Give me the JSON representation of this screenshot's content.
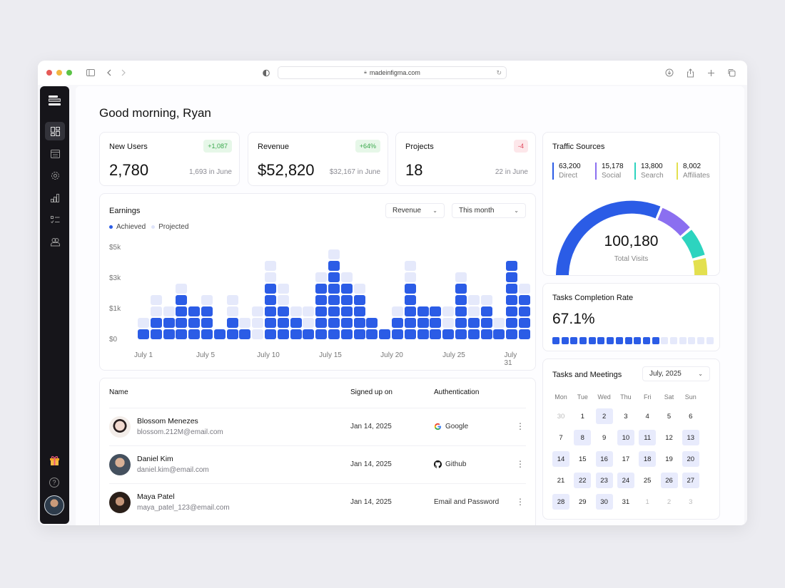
{
  "browser": {
    "url": "madeinfigma.com",
    "traffic_lights": [
      "#e65a57",
      "#f2b741",
      "#5bc346"
    ]
  },
  "sidebar": {
    "items": [
      {
        "name": "dashboard",
        "icon": "dashboard-icon",
        "active": true
      },
      {
        "name": "calendar",
        "icon": "calendar-icon",
        "active": false
      },
      {
        "name": "settings",
        "icon": "gear-icon",
        "active": false
      },
      {
        "name": "analytics",
        "icon": "bar-chart-icon",
        "active": false
      },
      {
        "name": "tasks",
        "icon": "checklist-icon",
        "active": false
      },
      {
        "name": "users",
        "icon": "users-icon",
        "active": false
      }
    ],
    "bottom": [
      "gift-icon",
      "help-icon",
      "avatar"
    ]
  },
  "greeting": "Good morning, Ryan",
  "stats": [
    {
      "title": "New Users",
      "badge": "+1,087",
      "badge_type": "pos",
      "value": "2,780",
      "sub": "1,693 in June"
    },
    {
      "title": "Revenue",
      "badge": "+64%",
      "badge_type": "pos",
      "value": "$52,820",
      "sub": "$32,167 in June"
    },
    {
      "title": "Projects",
      "badge": "-4",
      "badge_type": "neg",
      "value": "18",
      "sub": "22 in June"
    }
  ],
  "earnings": {
    "title": "Earnings",
    "metric_dropdown": "Revenue",
    "period_dropdown": "This month",
    "legend": [
      {
        "label": "Achieved",
        "color": "#2b5ce6"
      },
      {
        "label": "Projected",
        "color": "#e5e9fb"
      }
    ]
  },
  "chart_data": {
    "type": "bar",
    "title": "Earnings",
    "subtitle": "Revenue · This month",
    "xlabel": "",
    "ylabel": "",
    "y_ticks": [
      "$0",
      "$1k",
      "$3k",
      "$5k"
    ],
    "x_ticks": [
      "July 1",
      "July 5",
      "July 10",
      "July 15",
      "July 20",
      "July 25",
      "July 31"
    ],
    "categories": [
      "July 1",
      "July 2",
      "July 3",
      "July 4",
      "July 5",
      "July 6",
      "July 7",
      "July 8",
      "July 9",
      "July 10",
      "July 11",
      "July 12",
      "July 13",
      "July 14",
      "July 15",
      "July 16",
      "July 17",
      "July 18",
      "July 19",
      "July 20",
      "July 21",
      "July 22",
      "July 23",
      "July 24",
      "July 25",
      "July 26",
      "July 27",
      "July 28",
      "July 29",
      "July 30",
      "July 31"
    ],
    "series": [
      {
        "name": "Achieved",
        "unit": "blocks",
        "values": [
          1,
          2,
          2,
          4,
          3,
          3,
          1,
          2,
          1,
          0,
          5,
          3,
          2,
          1,
          5,
          7,
          5,
          4,
          2,
          1,
          2,
          5,
          3,
          3,
          1,
          5,
          2,
          3,
          1,
          7,
          4
        ]
      },
      {
        "name": "Projected",
        "unit": "blocks",
        "values": [
          2,
          4,
          3,
          5,
          3,
          4,
          1,
          4,
          2,
          3,
          7,
          5,
          3,
          3,
          6,
          8,
          6,
          5,
          2,
          1,
          3,
          7,
          3,
          3,
          3,
          6,
          4,
          4,
          2,
          7,
          5
        ]
      }
    ],
    "grid": false,
    "legend_position": "top-left"
  },
  "table": {
    "headers": [
      "Name",
      "Signed up on",
      "Authentication"
    ],
    "rows": [
      {
        "name": "Blossom Menezes",
        "email": "blossom.212M@email.com",
        "date": "Jan 14, 2025",
        "auth": "Google",
        "auth_icon": "google-icon",
        "avatar_color": "#d8c6bd"
      },
      {
        "name": "Daniel Kim",
        "email": "daniel.kim@email.com",
        "date": "Jan 14, 2025",
        "auth": "Github",
        "auth_icon": "github-icon",
        "avatar_color": "#5d6b7a"
      },
      {
        "name": "Maya Patel",
        "email": "maya_patel_123@email.com",
        "date": "Jan 14, 2025",
        "auth": "Email and Password",
        "auth_icon": "",
        "avatar_color": "#3a2c24"
      }
    ]
  },
  "traffic": {
    "title": "Traffic Sources",
    "sources": [
      {
        "value": "63,200",
        "label": "Direct",
        "color": "#2b5ce6"
      },
      {
        "value": "15,178",
        "label": "Social",
        "color": "#8b6ff0"
      },
      {
        "value": "13,800",
        "label": "Search",
        "color": "#2dd4bf"
      },
      {
        "value": "8,002",
        "label": "Affiliates",
        "color": "#e3e04f"
      }
    ],
    "total": "100,180",
    "total_label": "Total Visits"
  },
  "tasks_rate": {
    "title": "Tasks Completion Rate",
    "value": "67.1%",
    "filled": 12,
    "total": 18
  },
  "calendar": {
    "title": "Tasks and Meetings",
    "month": "July, 2025",
    "weekdays": [
      "Mon",
      "Tue",
      "Wed",
      "Thu",
      "Fri",
      "Sat",
      "Sun"
    ],
    "weeks": [
      [
        {
          "d": "30",
          "m": true
        },
        {
          "d": "1"
        },
        {
          "d": "2",
          "h": true
        },
        {
          "d": "3"
        },
        {
          "d": "4"
        },
        {
          "d": "5"
        },
        {
          "d": "6"
        }
      ],
      [
        {
          "d": "7"
        },
        {
          "d": "8",
          "h": true
        },
        {
          "d": "9"
        },
        {
          "d": "10",
          "h": true
        },
        {
          "d": "11",
          "h": true
        },
        {
          "d": "12"
        },
        {
          "d": "13",
          "h": true
        }
      ],
      [
        {
          "d": "14",
          "h": true
        },
        {
          "d": "15"
        },
        {
          "d": "16",
          "h": true
        },
        {
          "d": "17"
        },
        {
          "d": "18",
          "h": true
        },
        {
          "d": "19"
        },
        {
          "d": "20",
          "h": true
        }
      ],
      [
        {
          "d": "21"
        },
        {
          "d": "22",
          "h": true
        },
        {
          "d": "23",
          "h": true
        },
        {
          "d": "24",
          "h": true
        },
        {
          "d": "25"
        },
        {
          "d": "26",
          "h": true
        },
        {
          "d": "27",
          "h": true
        }
      ],
      [
        {
          "d": "28",
          "h": true
        },
        {
          "d": "29"
        },
        {
          "d": "30",
          "h": true
        },
        {
          "d": "31"
        },
        {
          "d": "1",
          "m": true
        },
        {
          "d": "2",
          "m": true
        },
        {
          "d": "3",
          "m": true
        }
      ]
    ]
  }
}
